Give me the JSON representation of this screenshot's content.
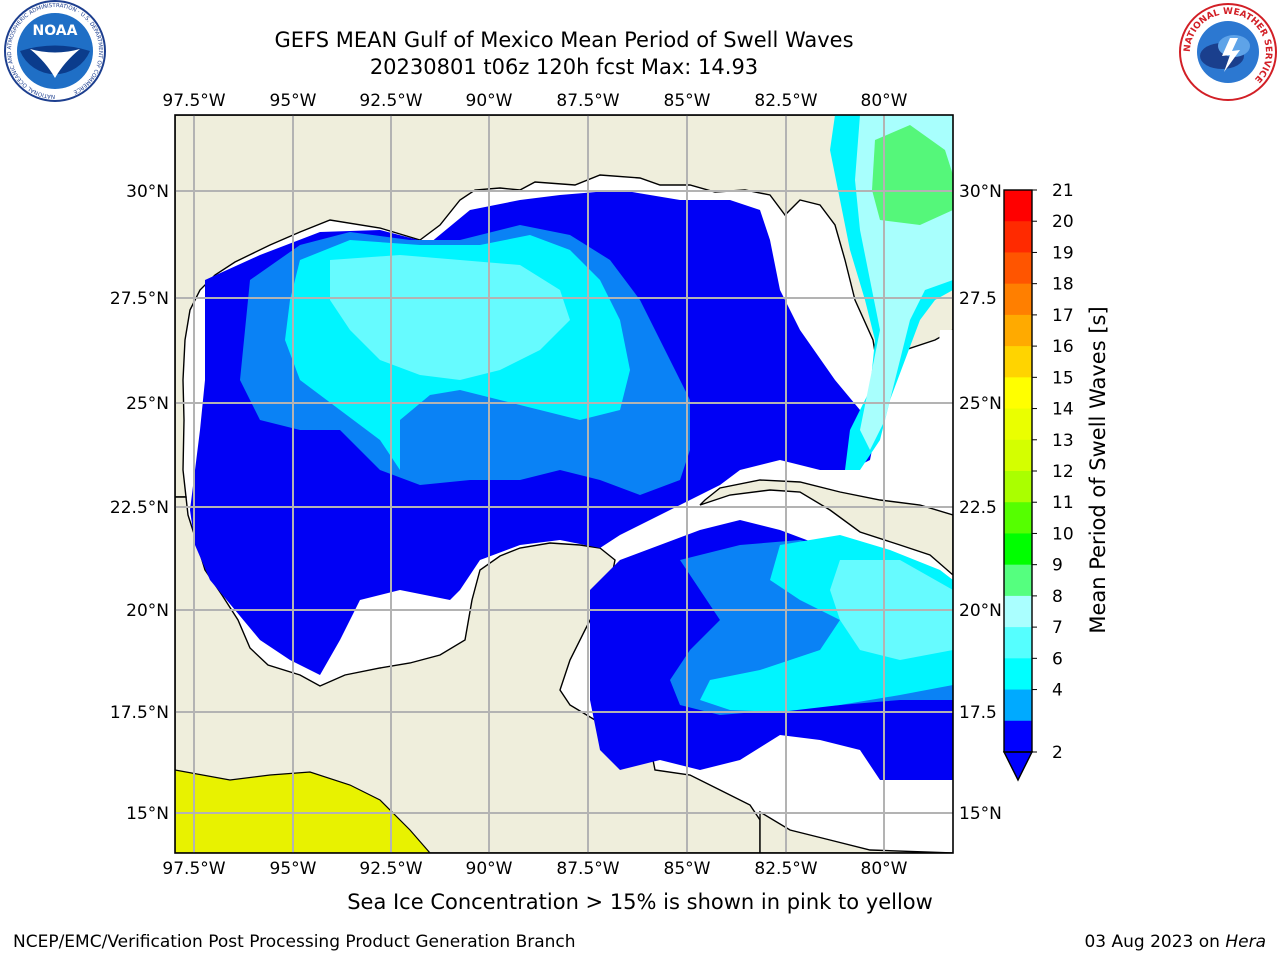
{
  "header": {
    "title_line1": "GEFS MEAN Gulf of Mexico Mean Period of Swell Waves",
    "title_line2": "20230801 t06z 120h fcst   Max: 14.93"
  },
  "logos": {
    "noaa_text": "NOAA",
    "noaa_ring_text": "NATIONAL OCEANIC AND ATMOSPHERIC ADMINISTRATION · U.S. DEPARTMENT OF COMMERCE",
    "nws_ring_text": "NATIONAL WEATHER SERVICE"
  },
  "map": {
    "lon_labels": [
      "97.5°W",
      "95°W",
      "92.5°W",
      "90°W",
      "87.5°W",
      "85°W",
      "82.5°W",
      "80°W"
    ],
    "lat_labels_left": [
      "30°N",
      "27.5°N",
      "25°N",
      "22.5°N",
      "20°N",
      "17.5°N",
      "15°N"
    ],
    "lat_labels_right": [
      "30°N",
      "27.5",
      "25°N",
      "22.5",
      "20°N",
      "17.5",
      "15°N"
    ],
    "colors": {
      "land": "#efeedc",
      "gridline": "#b3b3b3",
      "sea_ice_yellow": "#e8f200"
    }
  },
  "colorbar": {
    "label": "Mean Period of Swell Waves [s]",
    "ticks": [
      "21",
      "20",
      "19",
      "18",
      "17",
      "16",
      "15",
      "14",
      "13",
      "12",
      "11",
      "10",
      "9",
      "8",
      "7",
      "6",
      "4",
      "2"
    ],
    "colors": [
      "#ff0000",
      "#ff2a00",
      "#ff5500",
      "#ff7f00",
      "#ffaa00",
      "#ffd400",
      "#ffff00",
      "#eaff00",
      "#d4ff00",
      "#aaff00",
      "#55ff00",
      "#00ff00",
      "#55ff7f",
      "#aaffff",
      "#55ffff",
      "#00ffff",
      "#00aaff",
      "#0000ff"
    ]
  },
  "footer": {
    "note": "Sea Ice Concentration > 15% is shown in pink to yellow",
    "left": "NCEP/EMC/Verification Post Processing Product Generation Branch",
    "date": "03 Aug 2023 on ",
    "host": "Hera"
  }
}
